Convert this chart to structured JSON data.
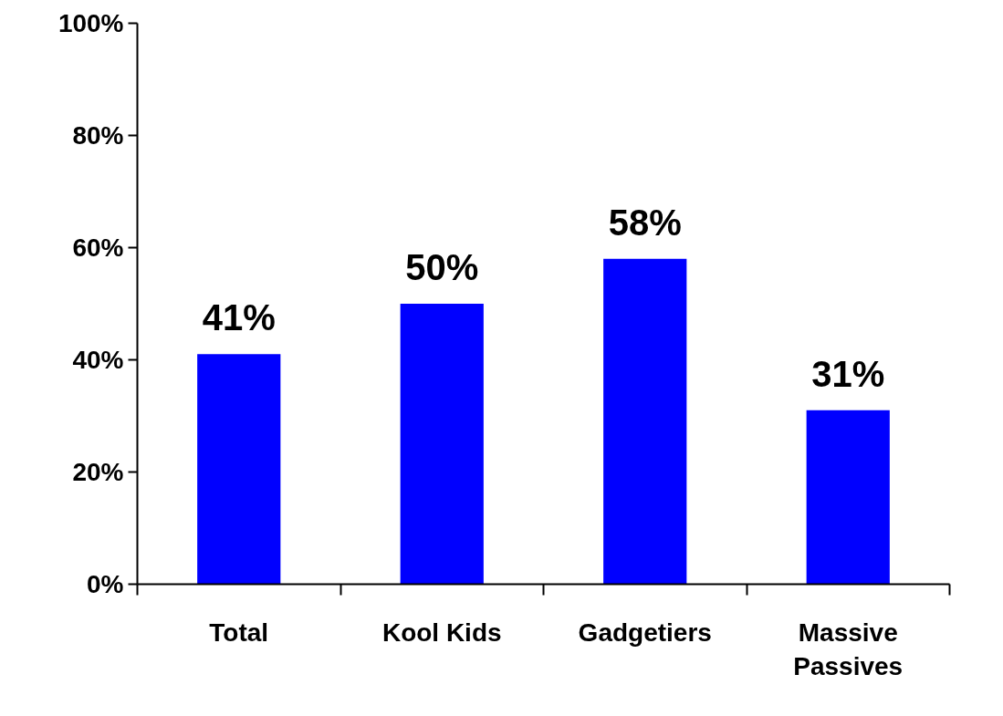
{
  "chart_data": {
    "type": "bar",
    "categories": [
      "Total",
      "Kool Kids",
      "Gadgetiers",
      "Massive Passives"
    ],
    "values": [
      41,
      50,
      58,
      31
    ],
    "value_labels": [
      "41%",
      "50%",
      "58%",
      "31%"
    ],
    "color": "#0000ff",
    "ylim": [
      0,
      100
    ],
    "yticks": [
      {
        "value": 0,
        "label": "0%"
      },
      {
        "value": 20,
        "label": "20%"
      },
      {
        "value": 40,
        "label": "40%"
      },
      {
        "value": 60,
        "label": "60%"
      },
      {
        "value": 80,
        "label": "80%"
      },
      {
        "value": 100,
        "label": "100%"
      }
    ],
    "grid": false
  }
}
